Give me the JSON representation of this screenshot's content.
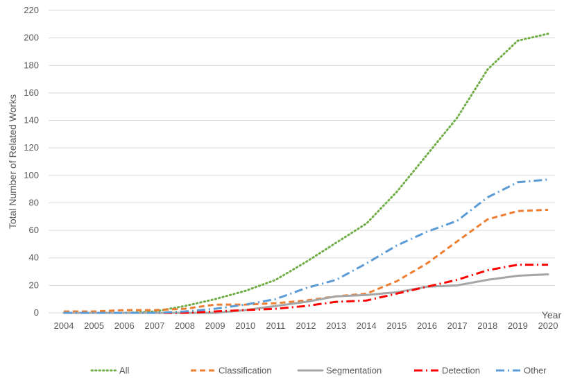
{
  "chart_data": {
    "type": "line",
    "title": "",
    "xlabel": "Year",
    "ylabel": "Total Number of Related Works",
    "ylim": [
      0,
      220
    ],
    "y_ticks": [
      0,
      20,
      40,
      60,
      80,
      100,
      120,
      140,
      160,
      180,
      200,
      220
    ],
    "grid": true,
    "legend_position": "bottom",
    "x": [
      "2004",
      "2005",
      "2006",
      "2007",
      "2008",
      "2009",
      "2010",
      "2011",
      "2012",
      "2013",
      "2014",
      "2015",
      "2016",
      "2017",
      "2018",
      "2019",
      "2020"
    ],
    "series": [
      {
        "name": "All",
        "color": "#70ad47",
        "dash": "dotted",
        "values": [
          0,
          0,
          0,
          1,
          5,
          10,
          16,
          24,
          37,
          51,
          65,
          88,
          115,
          142,
          177,
          198,
          203
        ]
      },
      {
        "name": "Classification",
        "color": "#ed7d31",
        "dash": "dashed",
        "values": [
          1,
          1,
          2,
          2,
          3,
          6,
          6,
          7,
          9,
          12,
          14,
          23,
          36,
          52,
          68,
          74,
          75
        ]
      },
      {
        "name": "Segmentation",
        "color": "#a5a5a5",
        "dash": "solid",
        "values": [
          0,
          0,
          0,
          0,
          0,
          0,
          2,
          5,
          8,
          12,
          13,
          15,
          19,
          20,
          24,
          27,
          28
        ]
      },
      {
        "name": "Detection",
        "color": "#ff0000",
        "dash": "dashdot",
        "values": [
          0,
          0,
          0,
          0,
          0,
          1,
          2,
          3,
          5,
          8,
          9,
          14,
          19,
          24,
          31,
          35,
          35
        ]
      },
      {
        "name": "Other",
        "color": "#5b9bd5",
        "dash": "dashdot",
        "values": [
          0,
          0,
          0,
          0,
          1,
          3,
          6,
          10,
          18,
          24,
          36,
          49,
          59,
          67,
          84,
          95,
          97
        ]
      }
    ]
  }
}
